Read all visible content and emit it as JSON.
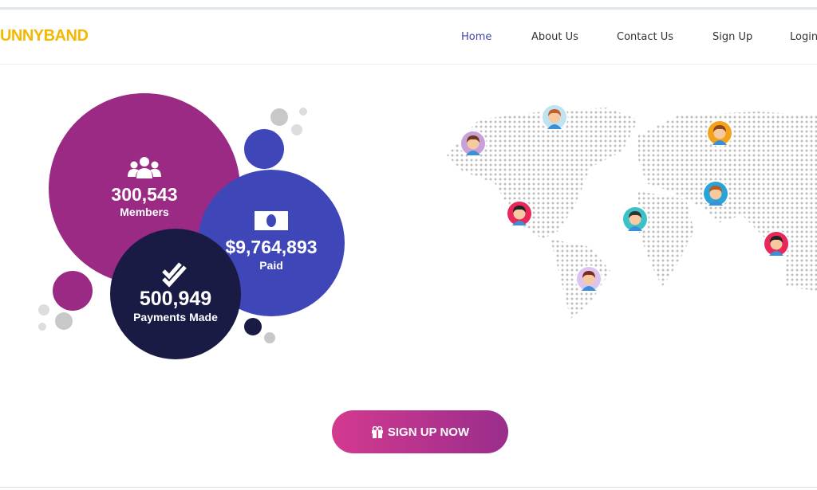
{
  "header": {
    "brand": "HUNNYBAND",
    "nav": [
      "Home",
      "About Us",
      "Contact Us",
      "Sign Up",
      "Login"
    ]
  },
  "stats": [
    {
      "value": "300,543",
      "label": "Members"
    },
    {
      "value": "$9,764,893",
      "label": "Paid"
    },
    {
      "value": "500,949",
      "label": "Payments Made"
    }
  ],
  "cta": "SIGN UP NOW"
}
